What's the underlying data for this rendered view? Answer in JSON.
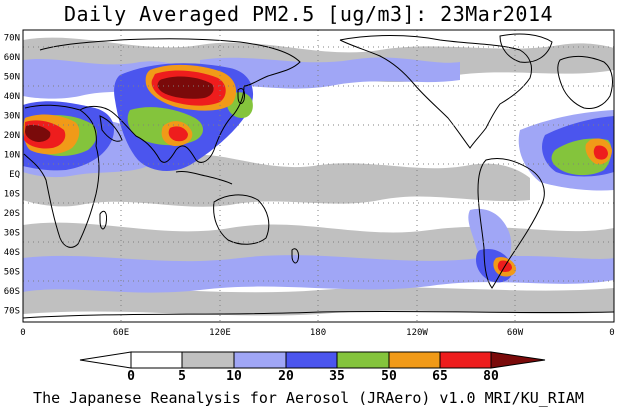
{
  "title": "Daily Averaged PM2.5 [ug/m3]: 23Mar2014",
  "credit": "The Japanese Reanalysis for Aerosol (JRAero) v1.0 MRI/KU_RIAM",
  "map": {
    "projection": "equirectangular",
    "lon_range": [
      0,
      360
    ],
    "lat_range": [
      -75,
      75
    ],
    "lat_labels": [
      "70N",
      "60N",
      "50N",
      "40N",
      "30N",
      "20N",
      "10N",
      "EQ",
      "10S",
      "20S",
      "30S",
      "40S",
      "50S",
      "60S",
      "70S"
    ],
    "lon_labels": [
      "0",
      "60E",
      "120E",
      "180",
      "120W",
      "60W",
      "0"
    ],
    "grid": "dotted"
  },
  "colorbar": {
    "levels": [
      "0",
      "5",
      "10",
      "20",
      "35",
      "50",
      "65",
      "80"
    ],
    "colors": [
      "#ffffff",
      "#c0c0c0",
      "#a0a6f6",
      "#4b55ee",
      "#84c43c",
      "#f19a18",
      "#ee1d1d",
      "#7a0a0a"
    ]
  }
}
